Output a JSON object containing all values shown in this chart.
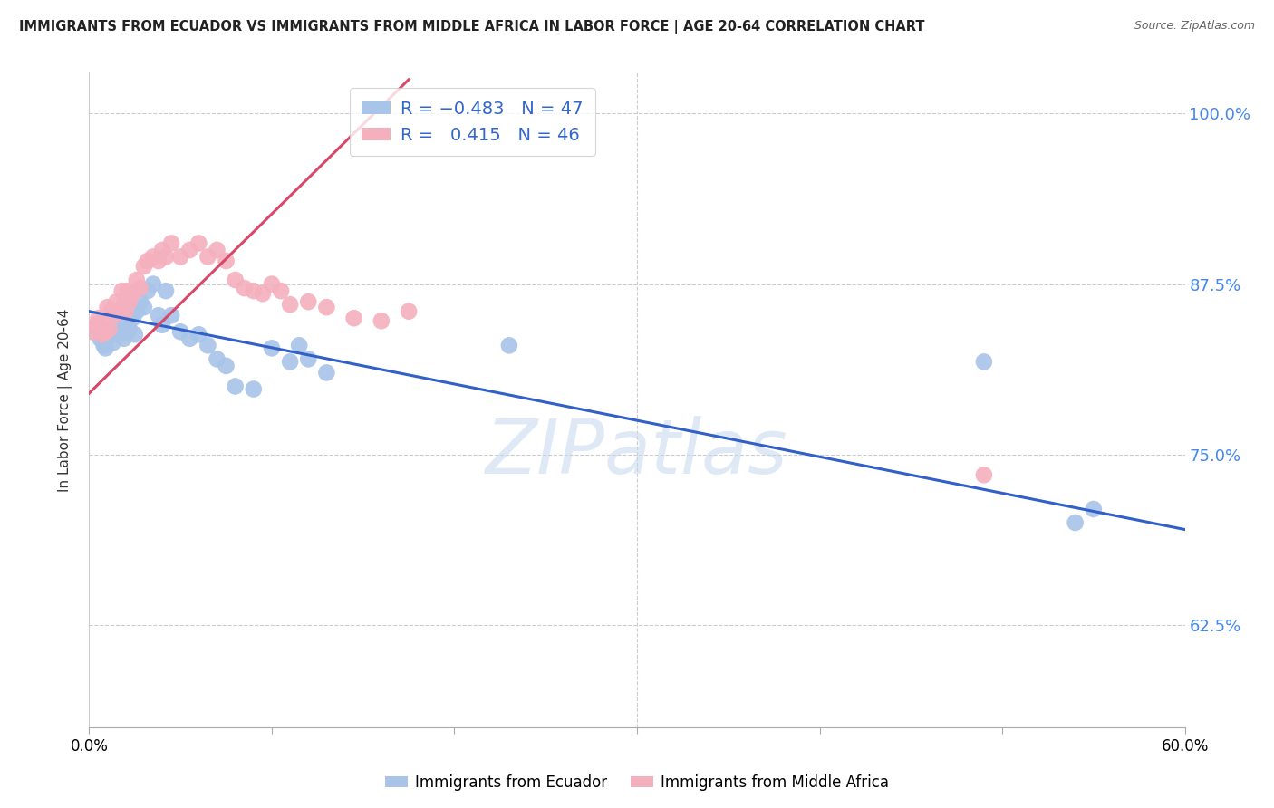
{
  "title": "IMMIGRANTS FROM ECUADOR VS IMMIGRANTS FROM MIDDLE AFRICA IN LABOR FORCE | AGE 20-64 CORRELATION CHART",
  "source": "Source: ZipAtlas.com",
  "ylabel": "In Labor Force | Age 20-64",
  "xlim": [
    0.0,
    0.6
  ],
  "ylim": [
    0.55,
    1.03
  ],
  "yticks": [
    0.625,
    0.75,
    0.875,
    1.0
  ],
  "ytick_labels": [
    "62.5%",
    "75.0%",
    "87.5%",
    "100.0%"
  ],
  "xtick_positions": [
    0.0,
    0.1,
    0.2,
    0.3,
    0.4,
    0.5,
    0.6
  ],
  "xtick_labels": [
    "0.0%",
    "",
    "",
    "",
    "",
    "",
    "60.0%"
  ],
  "blue_R": -0.483,
  "blue_N": 47,
  "pink_R": 0.415,
  "pink_N": 46,
  "blue_color": "#a8c4e8",
  "pink_color": "#f5b0be",
  "blue_line_color": "#3060c8",
  "pink_line_color": "#d84868",
  "legend_label_blue": "Immigrants from Ecuador",
  "legend_label_pink": "Immigrants from Middle Africa",
  "watermark": "ZIPatlas",
  "blue_x": [
    0.002,
    0.004,
    0.005,
    0.006,
    0.007,
    0.008,
    0.009,
    0.01,
    0.011,
    0.012,
    0.013,
    0.015,
    0.016,
    0.017,
    0.018,
    0.019,
    0.02,
    0.021,
    0.022,
    0.024,
    0.025,
    0.026,
    0.028,
    0.03,
    0.032,
    0.035,
    0.038,
    0.04,
    0.042,
    0.045,
    0.05,
    0.055,
    0.06,
    0.065,
    0.07,
    0.075,
    0.08,
    0.09,
    0.1,
    0.11,
    0.115,
    0.12,
    0.13,
    0.23,
    0.49,
    0.54,
    0.55
  ],
  "blue_y": [
    0.84,
    0.845,
    0.838,
    0.835,
    0.842,
    0.83,
    0.828,
    0.835,
    0.84,
    0.838,
    0.832,
    0.845,
    0.855,
    0.838,
    0.84,
    0.835,
    0.848,
    0.84,
    0.842,
    0.85,
    0.838,
    0.855,
    0.862,
    0.858,
    0.87,
    0.875,
    0.852,
    0.845,
    0.87,
    0.852,
    0.84,
    0.835,
    0.838,
    0.83,
    0.82,
    0.815,
    0.8,
    0.798,
    0.828,
    0.818,
    0.83,
    0.82,
    0.81,
    0.83,
    0.818,
    0.7,
    0.71
  ],
  "pink_x": [
    0.002,
    0.004,
    0.005,
    0.007,
    0.008,
    0.009,
    0.01,
    0.011,
    0.012,
    0.014,
    0.015,
    0.016,
    0.018,
    0.019,
    0.02,
    0.021,
    0.022,
    0.024,
    0.026,
    0.028,
    0.03,
    0.032,
    0.035,
    0.038,
    0.04,
    0.042,
    0.045,
    0.05,
    0.055,
    0.06,
    0.065,
    0.07,
    0.075,
    0.08,
    0.085,
    0.09,
    0.095,
    0.1,
    0.105,
    0.11,
    0.12,
    0.13,
    0.145,
    0.16,
    0.175,
    0.49
  ],
  "pink_y": [
    0.84,
    0.845,
    0.85,
    0.838,
    0.848,
    0.84,
    0.858,
    0.842,
    0.855,
    0.852,
    0.862,
    0.855,
    0.87,
    0.86,
    0.855,
    0.87,
    0.862,
    0.868,
    0.878,
    0.872,
    0.888,
    0.892,
    0.895,
    0.892,
    0.9,
    0.895,
    0.905,
    0.895,
    0.9,
    0.905,
    0.895,
    0.9,
    0.892,
    0.878,
    0.872,
    0.87,
    0.868,
    0.875,
    0.87,
    0.86,
    0.862,
    0.858,
    0.85,
    0.848,
    0.855,
    0.735
  ],
  "blue_line_x": [
    0.0,
    0.6
  ],
  "blue_line_y": [
    0.855,
    0.695
  ],
  "pink_line_x": [
    0.0,
    0.175
  ],
  "pink_line_y": [
    0.795,
    1.025
  ]
}
